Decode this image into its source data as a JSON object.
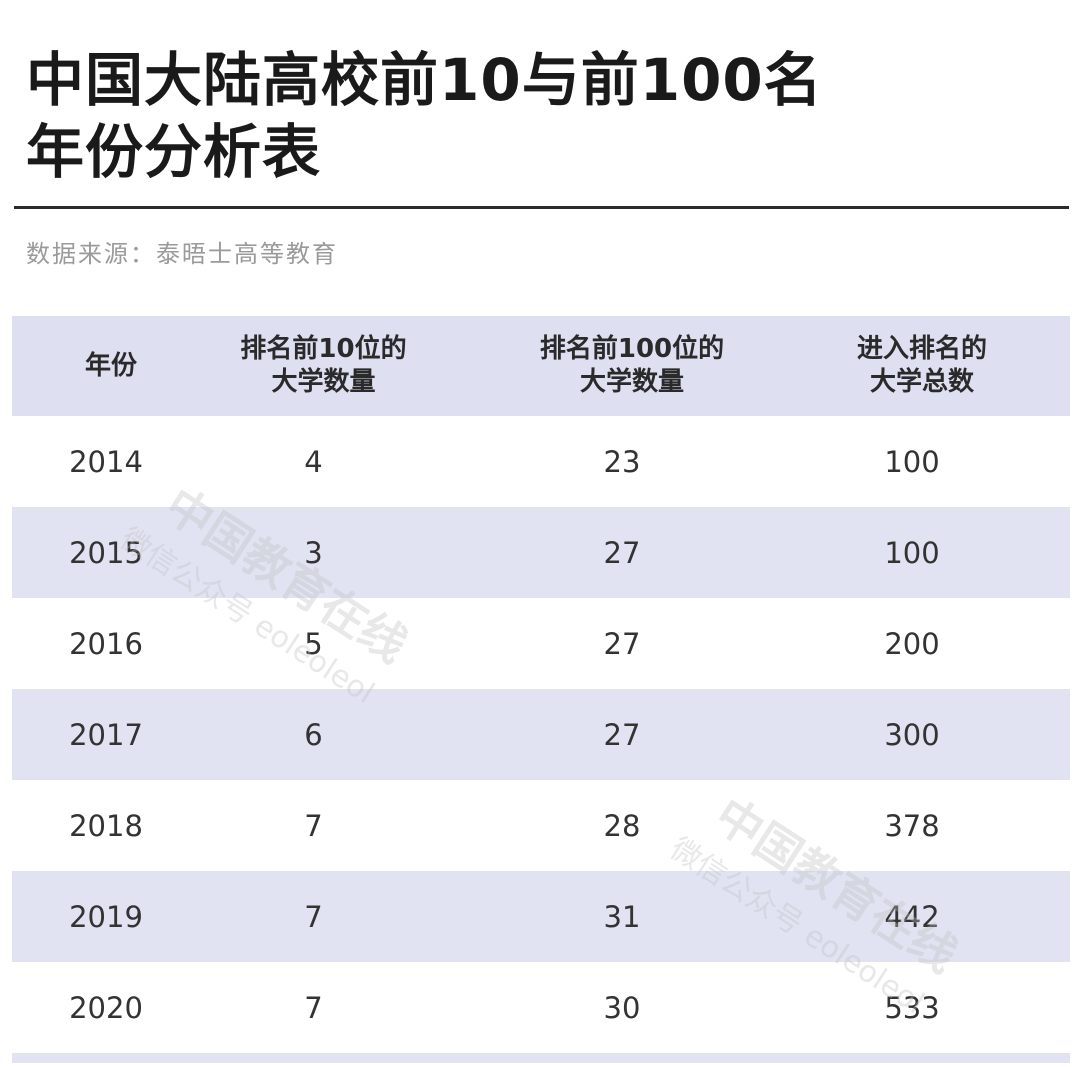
{
  "title_line1": "中国大陆高校前10与前100名",
  "title_line2": "年份分析表",
  "source": "数据来源：泰晤士高等教育",
  "watermark": {
    "main": "中国教育在线",
    "sub": "微信公众号 eoleoleol"
  },
  "chart_data": {
    "type": "table",
    "columns": [
      "年份",
      "排名前10位的\n大学数量",
      "排名前100位的\n大学数量",
      "进入排名的\n大学总数"
    ],
    "rows": [
      [
        "2014",
        "4",
        "23",
        "100"
      ],
      [
        "2015",
        "3",
        "27",
        "100"
      ],
      [
        "2016",
        "5",
        "27",
        "200"
      ],
      [
        "2017",
        "6",
        "27",
        "300"
      ],
      [
        "2018",
        "7",
        "28",
        "378"
      ],
      [
        "2019",
        "7",
        "31",
        "442"
      ],
      [
        "2020",
        "7",
        "30",
        "533"
      ]
    ]
  },
  "colors": {
    "header_bg": "#dedff0",
    "stripe_bg": "#e1e3f3",
    "rule": "#2b2b2b"
  }
}
